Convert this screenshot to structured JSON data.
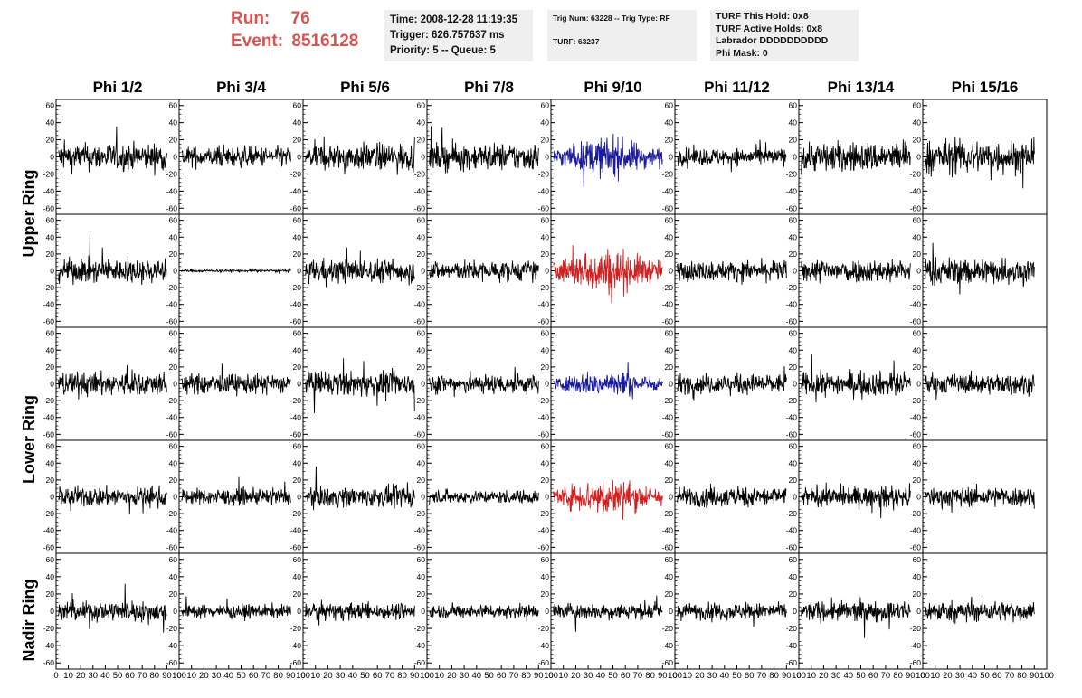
{
  "run_info": {
    "run_label": "Run:",
    "run_value": "76",
    "event_label": "Event:",
    "event_value": "8516128"
  },
  "time_box": {
    "time": "Time: 2008-12-28 11:19:35",
    "trigger": "Trigger: 626.757637 ms",
    "priority": "Priority: 5 -- Queue: 5"
  },
  "trig_box": {
    "trig": "Trig Num: 63228 -- Trig Type: RF",
    "turf": "TURF: 63237"
  },
  "turf_box": {
    "this_hold": "TURF This Hold: 0x8",
    "active_holds": "TURF Active Holds: 0x8",
    "labrador": "Labrador DDDDDDDDDD",
    "phi_mask": "Phi Mask: 0"
  },
  "columns": [
    "Phi 1/2",
    "Phi 3/4",
    "Phi 5/6",
    "Phi 7/8",
    "Phi 9/10",
    "Phi 11/12",
    "Phi 13/14",
    "Phi 15/16"
  ],
  "ring_labels": {
    "upper": "Upper Ring",
    "lower": "Lower Ring",
    "nadir": "Nadir Ring"
  },
  "colors": {
    "trace_default": "#000000",
    "trace_blue": "#1a1a9c",
    "trace_red": "#d42020",
    "run_text": "#d9534f",
    "info_bg": "#efefef"
  },
  "chart_data": {
    "type": "line",
    "description_grid": "5 rows x 8 columns of waveform panels",
    "ylim": [
      -65,
      65
    ],
    "xlim": [
      0,
      100
    ],
    "y_ticks": [
      "60",
      "40",
      "20",
      "0",
      "-20",
      "-40",
      "-60"
    ],
    "x_ticks": [
      "0",
      "10",
      "20",
      "30",
      "40",
      "50",
      "60",
      "70",
      "80",
      "90",
      "100"
    ],
    "row_amplitudes": [
      [
        20,
        15,
        20,
        20,
        25,
        13,
        22,
        25
      ],
      [
        18,
        2,
        18,
        15,
        30,
        15,
        18,
        20
      ],
      [
        18,
        15,
        18,
        15,
        18,
        15,
        18,
        15
      ],
      [
        15,
        12,
        15,
        10,
        25,
        15,
        15,
        15
      ],
      [
        15,
        10,
        12,
        10,
        12,
        12,
        15,
        15
      ]
    ],
    "row_colors": [
      [
        "default",
        "default",
        "default",
        "default",
        "blue",
        "default",
        "default",
        "default"
      ],
      [
        "default",
        "default",
        "default",
        "default",
        "red",
        "default",
        "default",
        "default"
      ],
      [
        "default",
        "default",
        "default",
        "default",
        "blue",
        "default",
        "default",
        "default"
      ],
      [
        "default",
        "default",
        "default",
        "default",
        "red",
        "default",
        "default",
        "default"
      ],
      [
        "default",
        "default",
        "default",
        "default",
        "default",
        "default",
        "default",
        "default"
      ]
    ]
  }
}
